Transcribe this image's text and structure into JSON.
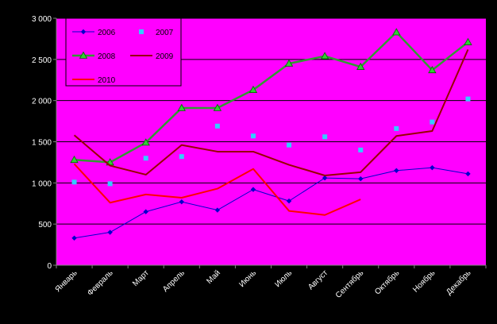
{
  "colors": {
    "plot_bg": "#ff00ff",
    "outer_bg": "#000000",
    "grid": "#000000",
    "axis_text": "#ffffff",
    "legend_bg": "#ff00ff",
    "legend_text": "#000000"
  },
  "chart_data": {
    "type": "line",
    "title": "",
    "xlabel": "",
    "ylabel": "",
    "ylim": [
      0,
      3000
    ],
    "yticks": [
      0,
      500,
      1000,
      1500,
      2000,
      2500,
      3000
    ],
    "ytick_labels": [
      "0",
      "500",
      "1 000",
      "1 500",
      "2 000",
      "2 500",
      "3 000"
    ],
    "grid": true,
    "legend_position": "top-left",
    "categories": [
      "Январь",
      "Февраль",
      "Март",
      "Апрель",
      "Май",
      "Июнь",
      "Июль",
      "Август",
      "Сентябрь",
      "Октябрь",
      "Ноябрь",
      "Декабрь"
    ],
    "series": [
      {
        "name": "2006",
        "color": "#0000cc",
        "style": "line-diamond",
        "values": [
          330,
          400,
          650,
          770,
          670,
          920,
          780,
          1060,
          1050,
          1150,
          1185,
          1110
        ]
      },
      {
        "name": "2007",
        "color": "#33ccff",
        "style": "square",
        "values": [
          1010,
          990,
          1300,
          1320,
          1690,
          1570,
          1460,
          1560,
          1400,
          1660,
          1740,
          2020
        ]
      },
      {
        "name": "2008",
        "color": "#339933",
        "style": "line-triangle",
        "values": [
          1280,
          1250,
          1490,
          1910,
          1910,
          2130,
          2450,
          2540,
          2410,
          2830,
          2370,
          2710
        ]
      },
      {
        "name": "2009",
        "color": "#990000",
        "style": "line",
        "values": [
          1580,
          1210,
          1100,
          1460,
          1380,
          1380,
          1220,
          1090,
          1130,
          1570,
          1630,
          2620
        ]
      },
      {
        "name": "2010",
        "color": "#ff0000",
        "style": "line",
        "values": [
          1230,
          760,
          860,
          820,
          930,
          1170,
          660,
          610,
          800,
          null,
          null,
          null
        ]
      }
    ]
  }
}
